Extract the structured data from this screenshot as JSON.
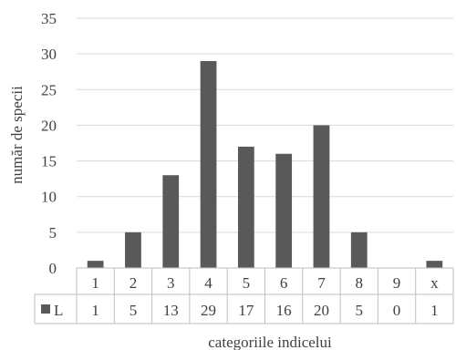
{
  "chart_data": {
    "type": "bar",
    "title": "",
    "xlabel": "categoriile indicelui",
    "ylabel": "număr de specii",
    "categories": [
      "1",
      "2",
      "3",
      "4",
      "5",
      "6",
      "7",
      "8",
      "9",
      "x"
    ],
    "series": [
      {
        "name": "L",
        "values": [
          1,
          5,
          13,
          29,
          17,
          16,
          20,
          5,
          0,
          1
        ],
        "color": "#595959"
      }
    ],
    "ylim": [
      0,
      35
    ],
    "yticks": [
      0,
      5,
      10,
      15,
      20,
      25,
      30,
      35
    ],
    "grid": true,
    "legend": "data-table",
    "gridline_color": "#d9d9d9",
    "table_border_color": "#bfbfbf"
  }
}
